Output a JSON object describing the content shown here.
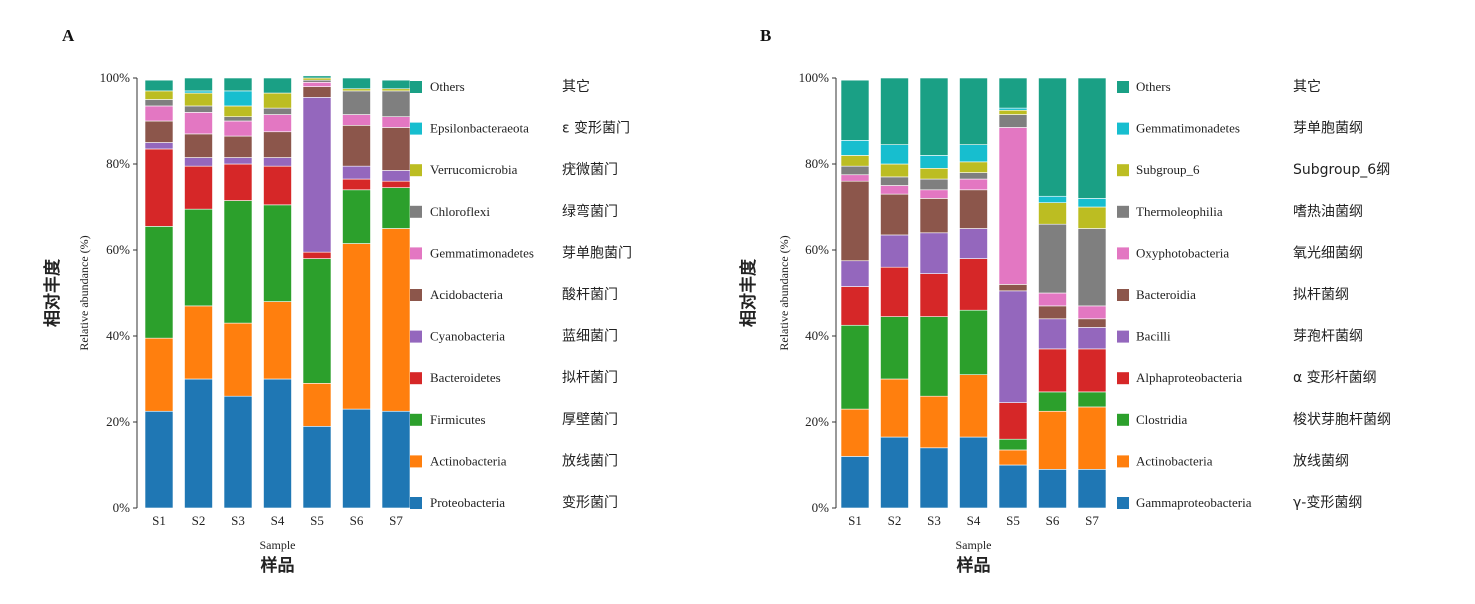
{
  "chart_data": [
    {
      "panel": "A",
      "type": "bar",
      "stacked": true,
      "categories": [
        "S1",
        "S2",
        "S3",
        "S4",
        "S5",
        "S6",
        "S7"
      ],
      "xlabel": "Sample",
      "xlabel_cn": "样品",
      "ylabel": "Relative abundance (%)",
      "ylabel_cn": "相对丰度",
      "ylim": [
        0,
        100
      ],
      "yticks": [
        "0%",
        "20%",
        "40%",
        "60%",
        "80%",
        "100%"
      ],
      "legend_position": "right",
      "series": [
        {
          "name": "Proteobacteria",
          "name_cn": "变形菌门",
          "color": "#1f77b4",
          "values": [
            22.5,
            30,
            26,
            30,
            19,
            23,
            22.5
          ]
        },
        {
          "name": "Actinobacteria",
          "name_cn": "放线菌门",
          "color": "#ff7f0e",
          "values": [
            17,
            17,
            17,
            18,
            10,
            38.5,
            42.5
          ]
        },
        {
          "name": "Firmicutes",
          "name_cn": "厚壁菌门",
          "color": "#2ca02c",
          "values": [
            26,
            22.5,
            28.5,
            22.5,
            29,
            12.5,
            9.5
          ]
        },
        {
          "name": "Bacteroidetes",
          "name_cn": "拟杆菌门",
          "color": "#d62728",
          "values": [
            18,
            10,
            8.5,
            9,
            1.5,
            2.5,
            1.5
          ]
        },
        {
          "name": "Cyanobacteria",
          "name_cn": "蓝细菌门",
          "color": "#9467bd",
          "values": [
            1.5,
            2,
            1.5,
            2,
            36,
            3,
            2.5
          ]
        },
        {
          "name": "Acidobacteria",
          "name_cn": "酸杆菌门",
          "color": "#8c564b",
          "values": [
            5,
            5.5,
            5,
            6,
            2.5,
            9.5,
            10
          ]
        },
        {
          "name": "Gemmatimonadetes",
          "name_cn": "芽单胞菌门",
          "color": "#e377c2",
          "values": [
            3.5,
            5,
            3.5,
            4,
            1,
            2.5,
            2.5
          ]
        },
        {
          "name": "Chloroflexi",
          "name_cn": "绿弯菌门",
          "color": "#7f7f7f",
          "values": [
            1.5,
            1.5,
            1,
            1.5,
            0.5,
            5.5,
            6
          ]
        },
        {
          "name": "Verrucomicrobia",
          "name_cn": "疣微菌门",
          "color": "#bcbd22",
          "values": [
            2,
            3,
            2.5,
            3.5,
            0.5,
            0.5,
            0.5
          ]
        },
        {
          "name": "Epsilonbacteraeota",
          "name_cn": "ε 变形菌门",
          "color": "#17becf",
          "values": [
            0,
            0.5,
            3.5,
            0,
            0,
            0,
            0
          ]
        },
        {
          "name": "Others",
          "name_cn": "其它",
          "color": "#1aa085",
          "values": [
            2.5,
            3,
            3,
            3.5,
            0.5,
            2.5,
            2
          ]
        }
      ]
    },
    {
      "panel": "B",
      "type": "bar",
      "stacked": true,
      "categories": [
        "S1",
        "S2",
        "S3",
        "S4",
        "S5",
        "S6",
        "S7"
      ],
      "xlabel": "Sample",
      "xlabel_cn": "样品",
      "ylabel": "Relative abundance (%)",
      "ylabel_cn": "相对丰度",
      "ylim": [
        0,
        100
      ],
      "yticks": [
        "0%",
        "20%",
        "40%",
        "60%",
        "80%",
        "100%"
      ],
      "legend_position": "right",
      "series": [
        {
          "name": "Gammaproteobacteria",
          "name_cn": "γ-变形菌纲",
          "color": "#1f77b4",
          "values": [
            12,
            16.5,
            14,
            16.5,
            10,
            9,
            9
          ]
        },
        {
          "name": "Actinobacteria",
          "name_cn": "放线菌纲",
          "color": "#ff7f0e",
          "values": [
            11,
            13.5,
            12,
            14.5,
            3.5,
            13.5,
            14.5
          ]
        },
        {
          "name": "Clostridia",
          "name_cn": "梭状芽胞杆菌纲",
          "color": "#2ca02c",
          "values": [
            19.5,
            14.5,
            18.5,
            15,
            2.5,
            4.5,
            3.5
          ]
        },
        {
          "name": "Alphaproteobacteria",
          "name_cn": "α 变形杆菌纲",
          "color": "#d62728",
          "values": [
            9,
            11.5,
            10,
            12,
            8.5,
            10,
            10
          ]
        },
        {
          "name": "Bacilli",
          "name_cn": "芽孢杆菌纲",
          "color": "#9467bd",
          "values": [
            6,
            7.5,
            9.5,
            7,
            26,
            7,
            5
          ]
        },
        {
          "name": "Bacteroidia",
          "name_cn": "拟杆菌纲",
          "color": "#8c564b",
          "values": [
            18.5,
            9.5,
            8,
            9,
            1.5,
            3,
            2
          ]
        },
        {
          "name": "Oxyphotobacteria",
          "name_cn": "氧光细菌纲",
          "color": "#e377c2",
          "values": [
            1.5,
            2,
            2,
            2.5,
            36.5,
            3,
            3
          ]
        },
        {
          "name": "Thermoleophilia",
          "name_cn": "嗜热油菌纲",
          "color": "#7f7f7f",
          "values": [
            2,
            2,
            2.5,
            1.5,
            3,
            16,
            18
          ]
        },
        {
          "name": "Subgroup_6",
          "name_cn": "Subgroup_6纲",
          "color": "#bcbd22",
          "values": [
            2.5,
            3,
            2.5,
            2.5,
            1,
            5,
            5
          ]
        },
        {
          "name": "Gemmatimonadetes",
          "name_cn": "芽单胞菌纲",
          "color": "#17becf",
          "values": [
            3.5,
            4.5,
            3,
            4,
            0.5,
            1.5,
            2
          ]
        },
        {
          "name": "Others",
          "name_cn": "其它",
          "color": "#1aa085",
          "values": [
            14,
            15.5,
            18,
            15.5,
            7,
            27.5,
            28
          ]
        }
      ]
    }
  ]
}
